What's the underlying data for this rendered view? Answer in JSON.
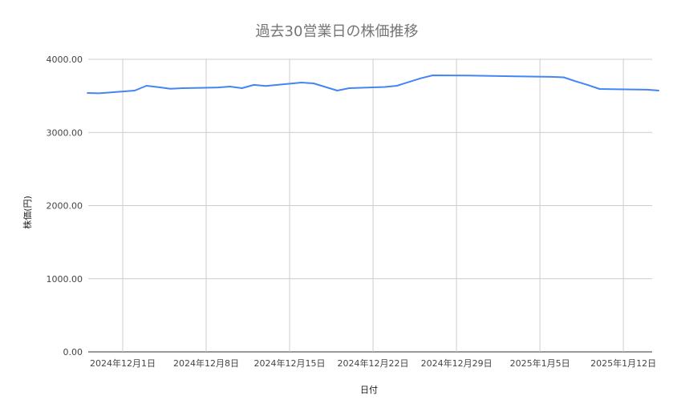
{
  "chart_data": {
    "type": "line",
    "title": "過去30営業日の株価推移",
    "xlabel": "日付",
    "ylabel": "株価(円)",
    "ylim": [
      0,
      4000
    ],
    "yticks": [
      "0.00",
      "1000.00",
      "2000.00",
      "3000.00",
      "4000.00"
    ],
    "xticks": [
      {
        "date": "2024-12-01",
        "label": "2024年12月1日"
      },
      {
        "date": "2024-12-08",
        "label": "2024年12月8日"
      },
      {
        "date": "2024-12-15",
        "label": "2024年12月15日"
      },
      {
        "date": "2024-12-22",
        "label": "2024年12月22日"
      },
      {
        "date": "2024-12-29",
        "label": "2024年12月29日"
      },
      {
        "date": "2025-01-05",
        "label": "2025年1月5日"
      },
      {
        "date": "2025-01-12",
        "label": "2025年1月12日"
      }
    ],
    "grid": true,
    "line_color": "#4285f4",
    "points": [
      {
        "x": "2024-11-28",
        "y": 3540
      },
      {
        "x": "2024-11-29",
        "y": 3535
      },
      {
        "x": "2024-12-02",
        "y": 3573
      },
      {
        "x": "2024-12-03",
        "y": 3638
      },
      {
        "x": "2024-12-04",
        "y": 3620
      },
      {
        "x": "2024-12-05",
        "y": 3598
      },
      {
        "x": "2024-12-06",
        "y": 3605
      },
      {
        "x": "2024-12-09",
        "y": 3615
      },
      {
        "x": "2024-12-10",
        "y": 3627
      },
      {
        "x": "2024-12-11",
        "y": 3605
      },
      {
        "x": "2024-12-12",
        "y": 3650
      },
      {
        "x": "2024-12-13",
        "y": 3636
      },
      {
        "x": "2024-12-16",
        "y": 3682
      },
      {
        "x": "2024-12-17",
        "y": 3671
      },
      {
        "x": "2024-12-18",
        "y": 3622
      },
      {
        "x": "2024-12-19",
        "y": 3573
      },
      {
        "x": "2024-12-20",
        "y": 3605
      },
      {
        "x": "2024-12-23",
        "y": 3622
      },
      {
        "x": "2024-12-24",
        "y": 3638
      },
      {
        "x": "2024-12-25",
        "y": 3690
      },
      {
        "x": "2024-12-26",
        "y": 3740
      },
      {
        "x": "2024-12-27",
        "y": 3781
      },
      {
        "x": "2024-12-30",
        "y": 3778
      },
      {
        "x": "2025-01-06",
        "y": 3760
      },
      {
        "x": "2025-01-07",
        "y": 3753
      },
      {
        "x": "2025-01-08",
        "y": 3700
      },
      {
        "x": "2025-01-09",
        "y": 3650
      },
      {
        "x": "2025-01-10",
        "y": 3595
      },
      {
        "x": "2025-01-14",
        "y": 3585
      },
      {
        "x": "2025-01-15",
        "y": 3573
      }
    ]
  }
}
